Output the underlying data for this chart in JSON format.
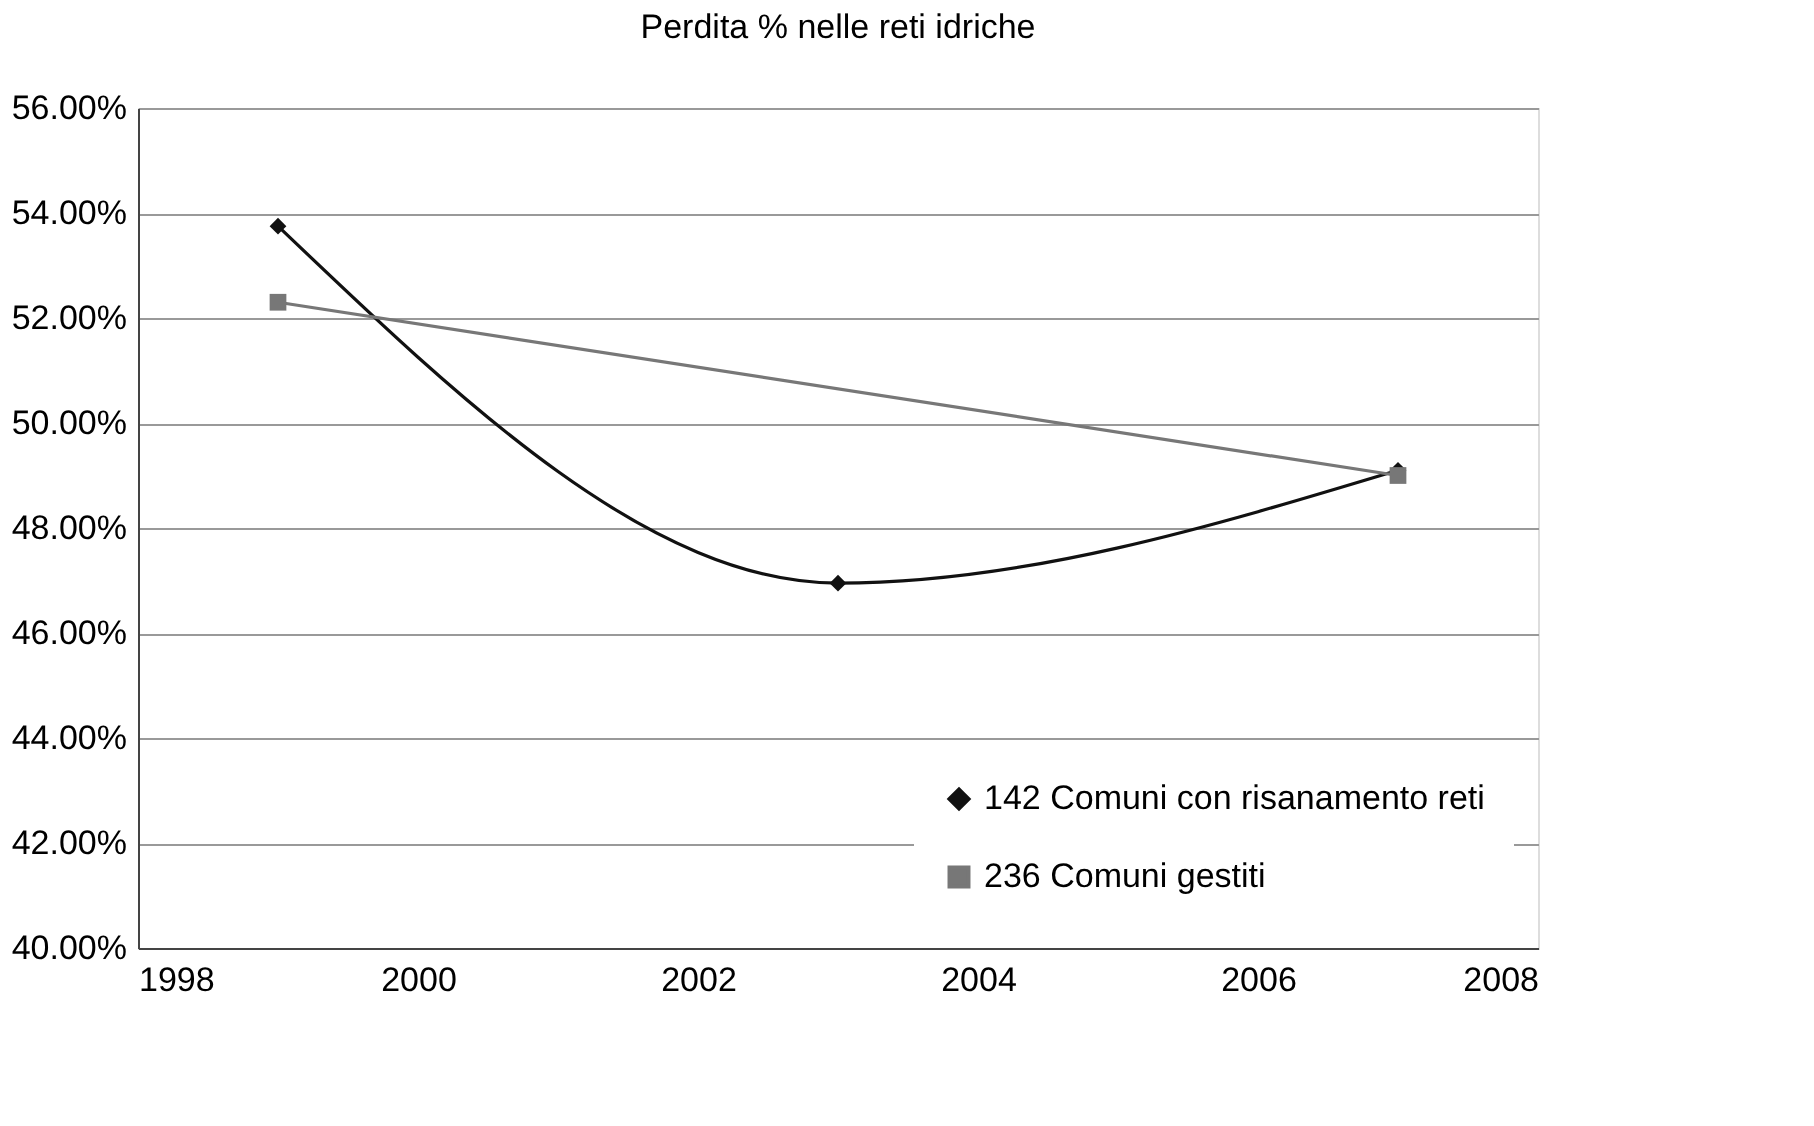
{
  "chart_data": {
    "type": "line",
    "title": "Perdita % nelle reti idriche",
    "series": [
      {
        "name": "142 Comuni con risanamento reti",
        "color": "#111111",
        "x": [
          1999,
          2003,
          2007
        ],
        "values": [
          53.75,
          46.95,
          49.1
        ],
        "marker": "diamond"
      },
      {
        "name": "236 Comuni gestiti",
        "color": "#777777",
        "x": [
          1999,
          2007
        ],
        "values": [
          52.3,
          49.0
        ],
        "marker": "square"
      }
    ],
    "xlim": [
      1998,
      2008
    ],
    "xticks": [
      1998,
      2000,
      2002,
      2004,
      2006,
      2008
    ],
    "ylim": [
      40,
      56
    ],
    "yticks": [
      {
        "value": 40,
        "label": "40.00%"
      },
      {
        "value": 42,
        "label": "42.00%"
      },
      {
        "value": 44,
        "label": "44.00%"
      },
      {
        "value": 46,
        "label": "46.00%"
      },
      {
        "value": 48,
        "label": "48.00%"
      },
      {
        "value": 50,
        "label": "50.00%"
      },
      {
        "value": 52,
        "label": "52.00%"
      },
      {
        "value": 54,
        "label": "54.00%"
      },
      {
        "value": 56,
        "label": "56.00%"
      }
    ],
    "grid": "y",
    "legend": "bottom right",
    "line_style": "solid"
  }
}
